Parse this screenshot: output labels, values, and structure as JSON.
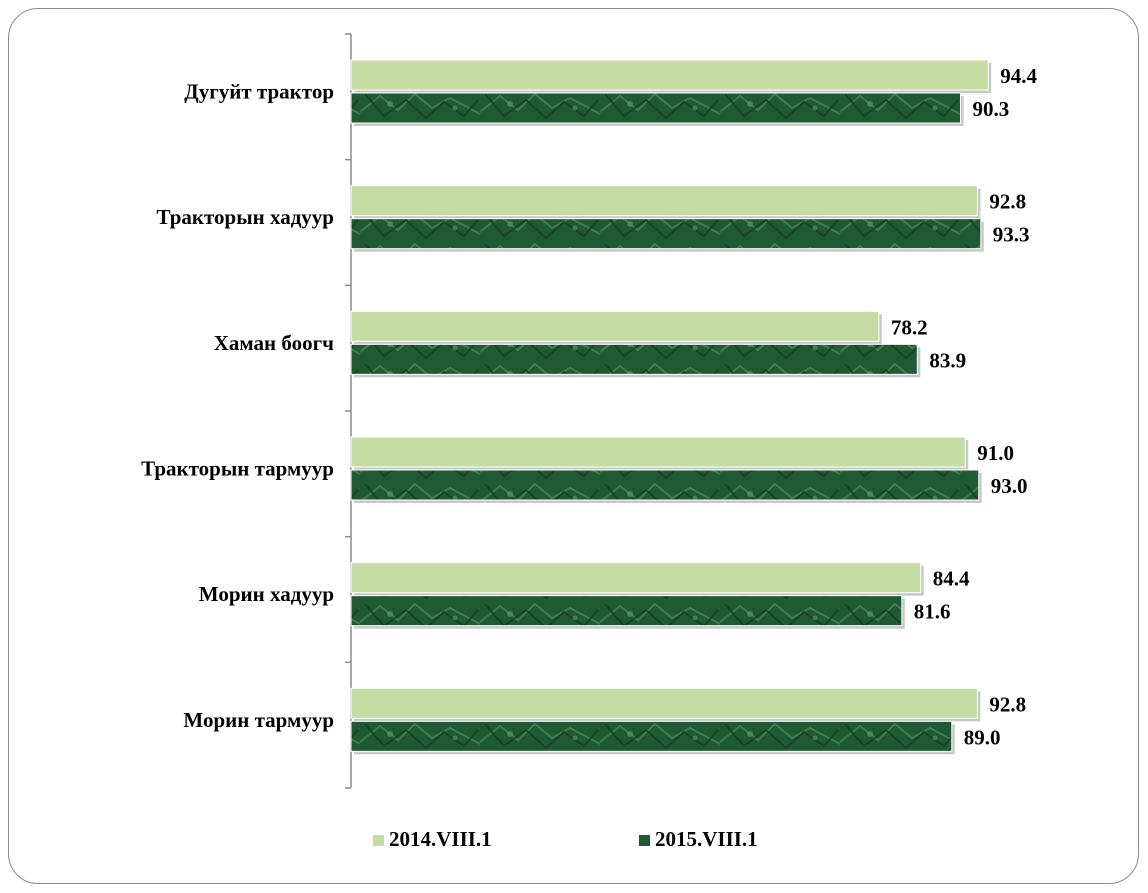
{
  "chart_data": {
    "type": "bar",
    "orientation": "horizontal",
    "categories": [
      "Дугуйт трактор",
      "Тракторын хадуур",
      "Хаман боогч",
      "Тракторын тармуур",
      "Морин хадуур",
      "Морин тармуур"
    ],
    "series": [
      {
        "name": "2014.VIII.1",
        "values": [
          94.4,
          92.8,
          78.2,
          91.0,
          84.4,
          92.8
        ],
        "color": "#c4dca2"
      },
      {
        "name": "2015.VIII.1",
        "values": [
          90.3,
          93.3,
          83.9,
          93.0,
          81.6,
          89.0
        ],
        "color": "#1f5a33"
      }
    ],
    "value_labels": [
      [
        "94.4",
        "92.8",
        "78.2",
        "91.0",
        "84.4",
        "92.8"
      ],
      [
        "90.3",
        "93.3",
        "83.9",
        "93.0",
        "81.6",
        "89.0"
      ]
    ],
    "title": "",
    "xlabel": "",
    "ylabel": "",
    "grid": false,
    "legend_position": "bottom"
  }
}
